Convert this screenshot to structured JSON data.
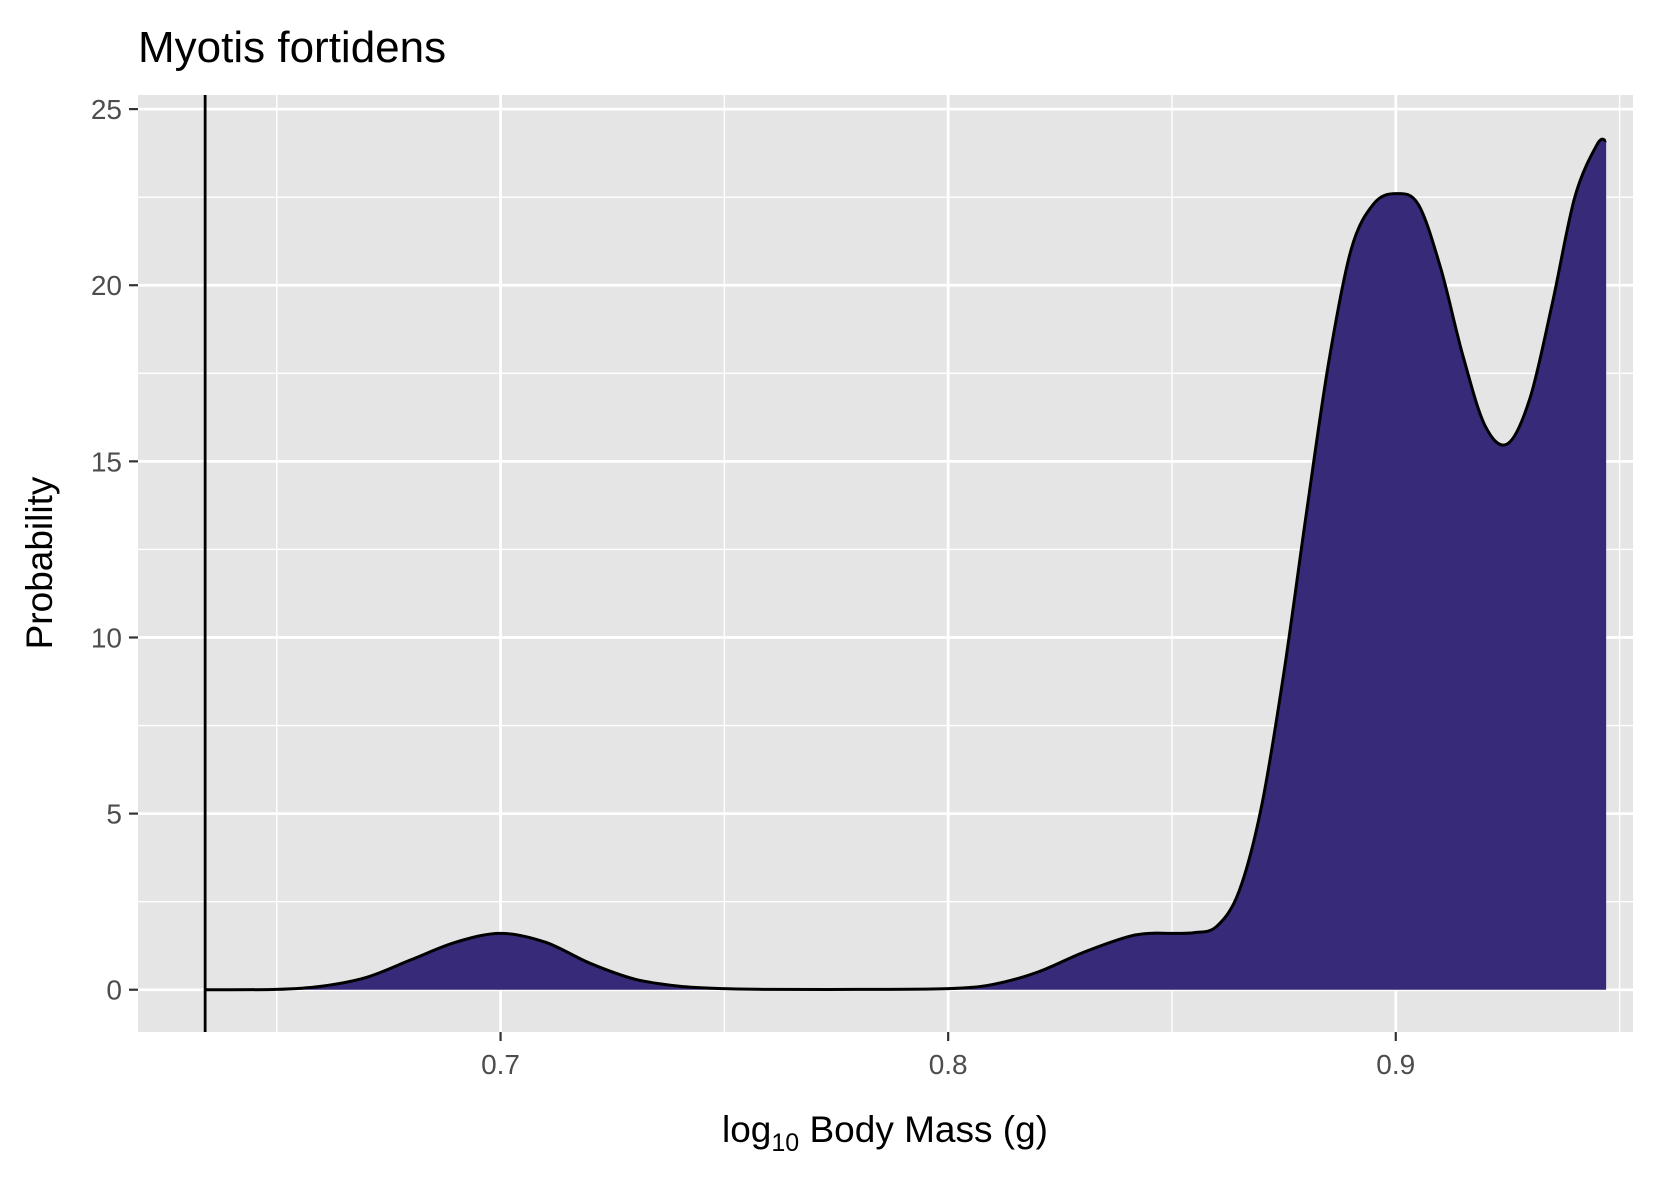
{
  "chart_data": {
    "type": "area",
    "title": "Myotis fortidens",
    "xlabel": {
      "base": "log",
      "subscript": "10",
      "rest": " Body Mass (g)"
    },
    "ylabel": "Probability",
    "xlim": [
      0.619,
      0.953
    ],
    "ylim": [
      -1.2,
      25.4
    ],
    "x_ticks": [
      0.7,
      0.8,
      0.9
    ],
    "x_tick_labels": [
      "0.7",
      "0.8",
      "0.9"
    ],
    "y_ticks": [
      0,
      5,
      10,
      15,
      20,
      25
    ],
    "y_tick_labels": [
      "0",
      "5",
      "10",
      "15",
      "20",
      "25"
    ],
    "grid": true,
    "vline_x": 0.634,
    "fill_color": "#372a78",
    "line_color": "#000000",
    "panel_color": "#e5e5e5",
    "series": [
      {
        "x": [
          0.634,
          0.65,
          0.66,
          0.67,
          0.68,
          0.69,
          0.7,
          0.71,
          0.72,
          0.73,
          0.74,
          0.75,
          0.76,
          0.78,
          0.8,
          0.81,
          0.82,
          0.83,
          0.84,
          0.845,
          0.85,
          0.855,
          0.86,
          0.865,
          0.87,
          0.875,
          0.88,
          0.885,
          0.89,
          0.895,
          0.9,
          0.905,
          0.91,
          0.915,
          0.92,
          0.925,
          0.93,
          0.935,
          0.94,
          0.945,
          0.947
        ],
        "values": [
          0,
          0.01,
          0.1,
          0.35,
          0.85,
          1.35,
          1.6,
          1.35,
          0.75,
          0.3,
          0.1,
          0.03,
          0.01,
          0.01,
          0.03,
          0.15,
          0.5,
          1.05,
          1.5,
          1.6,
          1.6,
          1.62,
          1.8,
          2.8,
          5.2,
          9.0,
          13.5,
          17.8,
          21.0,
          22.3,
          22.6,
          22.3,
          20.5,
          18.0,
          16.0,
          15.5,
          16.8,
          19.5,
          22.5,
          24.0,
          24.1
        ]
      }
    ]
  }
}
